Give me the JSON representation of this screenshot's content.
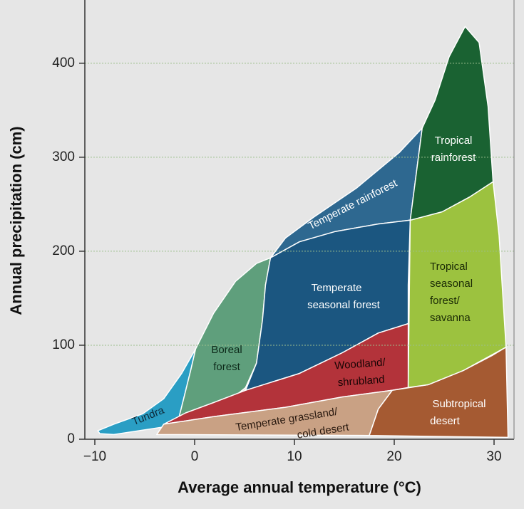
{
  "chart_data": {
    "type": "region",
    "x_label": "Average annual temperature (°C)",
    "y_label": "Annual precipitation (cm)",
    "xlim": [
      -11,
      32
    ],
    "ylim": [
      0,
      465
    ],
    "xticks": [
      {
        "value": -10,
        "label": "−10"
      },
      0,
      10,
      20,
      30
    ],
    "yticks": [
      0,
      100,
      200,
      300,
      400
    ],
    "grid": true,
    "grid_color": "#9cbf8c",
    "regions": [
      {
        "name": "Tundra",
        "label": [
          "Tundra"
        ],
        "color": "#2a9ec4",
        "x": [
          -9.7,
          -8.1,
          -5.2,
          -3.1,
          -1.3,
          0.1,
          -0.4,
          -1.1,
          -1.6,
          -3.1,
          -8.1,
          -9.5
        ],
        "y": [
          9,
          16,
          27,
          43,
          70,
          96,
          73,
          43,
          22,
          13,
          5,
          6
        ]
      },
      {
        "name": "Boreal forest",
        "label": [
          "Boreal",
          "forest"
        ],
        "color": "#5f9f7c",
        "x": [
          0.1,
          1.9,
          4.1,
          6.2,
          7.6,
          7.1,
          6.8,
          6.2,
          5.1,
          3.7,
          1.2,
          -1.6,
          -1.1,
          -0.4
        ],
        "y": [
          96,
          134,
          168,
          187,
          193,
          164,
          127,
          81,
          55,
          43,
          34,
          22,
          43,
          73
        ]
      },
      {
        "name": "Temperate rainforest",
        "label": [
          "Temperate rainforest"
        ],
        "color": "#2e6890",
        "x": [
          7.6,
          10.5,
          14.1,
          18.4,
          21.6,
          22.8,
          20.5,
          16.2,
          11.9,
          9.1
        ],
        "y": [
          193,
          210,
          221,
          229,
          233,
          331,
          305,
          267,
          236,
          214
        ]
      },
      {
        "name": "Temperate seasonal forest",
        "label": [
          "Temperate",
          "seasonal forest"
        ],
        "color": "#1b5680",
        "x": [
          7.6,
          10.5,
          14.1,
          18.4,
          21.6,
          21.4,
          21.4,
          18.4,
          14.8,
          10.5,
          5.1,
          6.2,
          6.8,
          7.1
        ],
        "y": [
          193,
          210,
          221,
          229,
          233,
          164,
          123,
          113,
          92,
          70,
          52,
          81,
          127,
          164
        ]
      },
      {
        "name": "Woodland/shrubland",
        "label": [
          "Woodland/",
          "shrubland"
        ],
        "color": "#b3333a",
        "x": [
          21.4,
          21.4,
          19.8,
          14.8,
          9.1,
          1.9,
          -3.1,
          -0.9,
          1.9,
          5.1,
          10.5,
          14.8,
          18.4
        ],
        "y": [
          123,
          55,
          52,
          45,
          34,
          24,
          16,
          28,
          39,
          52,
          70,
          92,
          113
        ]
      },
      {
        "name": "Temperate grassland/cold desert",
        "label": [
          "Temperate grassland/",
          "cold desert"
        ],
        "color": "#c9a184",
        "x": [
          -3.8,
          -3.1,
          1.9,
          9.1,
          14.8,
          19.8,
          18.4,
          17.5
        ],
        "y": [
          5,
          16,
          24,
          34,
          45,
          52,
          32,
          4
        ]
      },
      {
        "name": "Subtropical desert",
        "label": [
          "Subtropical",
          "desert"
        ],
        "color": "#a55a32",
        "x": [
          17.5,
          18.4,
          19.8,
          23.4,
          26.9,
          29.8,
          31.2,
          31.4
        ],
        "y": [
          4,
          32,
          52,
          58,
          73,
          89,
          98,
          2
        ]
      },
      {
        "name": "Tropical seasonal forest/savanna",
        "label": [
          "Tropical",
          "seasonal",
          "forest/",
          "savanna"
        ],
        "color": "#9cc23f",
        "x": [
          21.4,
          21.6,
          24.8,
          27.6,
          29.9,
          30.5,
          30.9,
          31.2,
          26.9,
          23.4
        ],
        "y": [
          55,
          233,
          242,
          258,
          274,
          217,
          149,
          98,
          73,
          58
        ]
      },
      {
        "name": "Tropical rainforest",
        "label": [
          "Tropical",
          "rainforest"
        ],
        "color": "#1a6232",
        "x": [
          21.6,
          22.8,
          24.1,
          25.5,
          27.1,
          28.5,
          29.4,
          29.9,
          27.6,
          24.8
        ],
        "y": [
          233,
          331,
          361,
          407,
          439,
          422,
          354,
          274,
          258,
          242
        ]
      }
    ]
  }
}
